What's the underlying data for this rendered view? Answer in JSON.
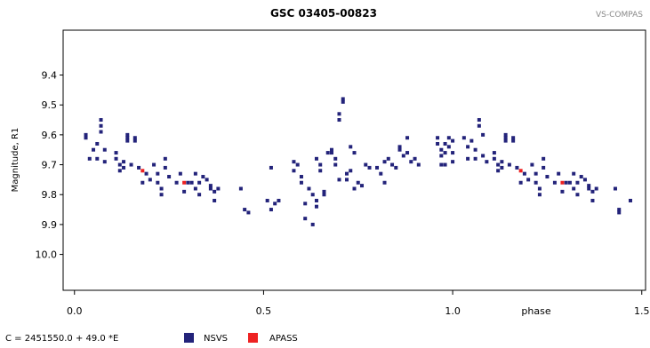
{
  "chart_data": {
    "type": "scatter",
    "title": "GSC 03405-00823",
    "brand": "VS-COMPAS",
    "xlabel": "phase",
    "ylabel": "Magnitude, R1",
    "xlim": [
      -0.03,
      1.51
    ],
    "ylim": [
      9.25,
      10.12
    ],
    "y_inverted": true,
    "x_ticks": [
      {
        "value": 0.0,
        "label": "0.0"
      },
      {
        "value": 0.5,
        "label": "0.5"
      },
      {
        "value": 1.0,
        "label": "1.0"
      },
      {
        "value": 1.5,
        "label": "1.5"
      }
    ],
    "y_ticks": [
      {
        "value": 9.4,
        "label": "9.4"
      },
      {
        "value": 9.5,
        "label": "9.5"
      },
      {
        "value": 9.6,
        "label": "9.6"
      },
      {
        "value": 9.7,
        "label": "9.7"
      },
      {
        "value": 9.8,
        "label": "9.8"
      },
      {
        "value": 9.9,
        "label": "9.9"
      },
      {
        "value": 10.0,
        "label": "10.0"
      }
    ],
    "footer_formula": "C = 2451550.0 + 49.0 *E",
    "series": [
      {
        "name": "NSVS",
        "color": "#23237a",
        "points": [
          [
            0.03,
            9.6
          ],
          [
            0.03,
            9.61
          ],
          [
            0.04,
            9.68
          ],
          [
            0.05,
            9.65
          ],
          [
            0.06,
            9.63
          ],
          [
            0.06,
            9.68
          ],
          [
            0.07,
            9.57
          ],
          [
            0.07,
            9.55
          ],
          [
            0.07,
            9.59
          ],
          [
            0.08,
            9.65
          ],
          [
            0.08,
            9.69
          ],
          [
            0.11,
            9.66
          ],
          [
            0.11,
            9.68
          ],
          [
            0.12,
            9.7
          ],
          [
            0.12,
            9.72
          ],
          [
            0.13,
            9.69
          ],
          [
            0.13,
            9.71
          ],
          [
            0.14,
            9.6
          ],
          [
            0.14,
            9.61
          ],
          [
            0.14,
            9.62
          ],
          [
            0.15,
            9.7
          ],
          [
            0.16,
            9.62
          ],
          [
            0.16,
            9.61
          ],
          [
            0.17,
            9.71
          ],
          [
            0.18,
            9.76
          ],
          [
            0.19,
            9.73
          ],
          [
            0.2,
            9.75
          ],
          [
            0.21,
            9.7
          ],
          [
            0.22,
            9.73
          ],
          [
            0.22,
            9.76
          ],
          [
            0.23,
            9.78
          ],
          [
            0.23,
            9.8
          ],
          [
            0.24,
            9.68
          ],
          [
            0.24,
            9.71
          ],
          [
            0.25,
            9.74
          ],
          [
            0.27,
            9.76
          ],
          [
            0.28,
            9.73
          ],
          [
            0.29,
            9.79
          ],
          [
            0.3,
            9.76
          ],
          [
            0.31,
            9.76
          ],
          [
            0.32,
            9.73
          ],
          [
            0.32,
            9.78
          ],
          [
            0.33,
            9.8
          ],
          [
            0.33,
            9.76
          ],
          [
            0.34,
            9.74
          ],
          [
            0.35,
            9.75
          ],
          [
            0.36,
            9.77
          ],
          [
            0.36,
            9.78
          ],
          [
            0.37,
            9.82
          ],
          [
            0.37,
            9.79
          ],
          [
            0.38,
            9.78
          ],
          [
            0.44,
            9.78
          ],
          [
            0.45,
            9.85
          ],
          [
            0.46,
            9.86
          ],
          [
            0.51,
            9.82
          ],
          [
            0.52,
            9.71
          ],
          [
            0.52,
            9.85
          ],
          [
            0.53,
            9.83
          ],
          [
            0.54,
            9.82
          ],
          [
            0.58,
            9.69
          ],
          [
            0.58,
            9.72
          ],
          [
            0.59,
            9.7
          ],
          [
            0.6,
            9.74
          ],
          [
            0.6,
            9.76
          ],
          [
            0.61,
            9.88
          ],
          [
            0.61,
            9.83
          ],
          [
            0.62,
            9.78
          ],
          [
            0.63,
            9.8
          ],
          [
            0.63,
            9.9
          ],
          [
            0.64,
            9.82
          ],
          [
            0.64,
            9.84
          ],
          [
            0.64,
            9.68
          ],
          [
            0.65,
            9.7
          ],
          [
            0.65,
            9.72
          ],
          [
            0.66,
            9.8
          ],
          [
            0.66,
            9.79
          ],
          [
            0.67,
            9.66
          ],
          [
            0.68,
            9.65
          ],
          [
            0.68,
            9.66
          ],
          [
            0.69,
            9.68
          ],
          [
            0.69,
            9.7
          ],
          [
            0.7,
            9.75
          ],
          [
            0.7,
            9.53
          ],
          [
            0.7,
            9.55
          ],
          [
            0.71,
            9.48
          ],
          [
            0.71,
            9.49
          ],
          [
            0.72,
            9.75
          ],
          [
            0.72,
            9.73
          ],
          [
            0.73,
            9.64
          ],
          [
            0.73,
            9.72
          ],
          [
            0.74,
            9.66
          ],
          [
            0.74,
            9.78
          ],
          [
            0.75,
            9.76
          ],
          [
            0.76,
            9.77
          ],
          [
            0.77,
            9.7
          ],
          [
            0.78,
            9.71
          ],
          [
            0.8,
            9.71
          ],
          [
            0.81,
            9.73
          ],
          [
            0.82,
            9.76
          ],
          [
            0.82,
            9.69
          ],
          [
            0.83,
            9.68
          ],
          [
            0.84,
            9.7
          ],
          [
            0.85,
            9.71
          ],
          [
            0.86,
            9.64
          ],
          [
            0.86,
            9.65
          ],
          [
            0.87,
            9.67
          ],
          [
            0.88,
            9.61
          ],
          [
            0.88,
            9.66
          ],
          [
            0.89,
            9.69
          ],
          [
            0.9,
            9.68
          ],
          [
            0.91,
            9.7
          ],
          [
            0.96,
            9.61
          ],
          [
            0.96,
            9.63
          ],
          [
            0.97,
            9.65
          ],
          [
            0.97,
            9.67
          ],
          [
            0.97,
            9.7
          ],
          [
            0.98,
            9.63
          ],
          [
            0.98,
            9.66
          ],
          [
            0.98,
            9.7
          ],
          [
            0.99,
            9.64
          ],
          [
            0.99,
            9.61
          ],
          [
            1.0,
            9.66
          ],
          [
            1.0,
            9.62
          ],
          [
            1.0,
            9.69
          ],
          [
            1.03,
            9.61
          ],
          [
            1.04,
            9.64
          ],
          [
            1.04,
            9.68
          ],
          [
            1.05,
            9.62
          ],
          [
            1.06,
            9.65
          ],
          [
            1.06,
            9.68
          ],
          [
            1.07,
            9.57
          ],
          [
            1.07,
            9.55
          ],
          [
            1.08,
            9.6
          ],
          [
            1.08,
            9.67
          ],
          [
            1.09,
            9.69
          ],
          [
            1.11,
            9.66
          ],
          [
            1.11,
            9.68
          ],
          [
            1.12,
            9.7
          ],
          [
            1.12,
            9.72
          ],
          [
            1.13,
            9.69
          ],
          [
            1.13,
            9.71
          ],
          [
            1.14,
            9.6
          ],
          [
            1.14,
            9.61
          ],
          [
            1.14,
            9.62
          ],
          [
            1.15,
            9.7
          ],
          [
            1.16,
            9.62
          ],
          [
            1.16,
            9.61
          ],
          [
            1.17,
            9.71
          ],
          [
            1.18,
            9.76
          ],
          [
            1.19,
            9.73
          ],
          [
            1.2,
            9.75
          ],
          [
            1.21,
            9.7
          ],
          [
            1.22,
            9.73
          ],
          [
            1.22,
            9.76
          ],
          [
            1.23,
            9.78
          ],
          [
            1.23,
            9.8
          ],
          [
            1.24,
            9.68
          ],
          [
            1.24,
            9.71
          ],
          [
            1.25,
            9.74
          ],
          [
            1.27,
            9.76
          ],
          [
            1.28,
            9.73
          ],
          [
            1.29,
            9.79
          ],
          [
            1.3,
            9.76
          ],
          [
            1.31,
            9.76
          ],
          [
            1.32,
            9.73
          ],
          [
            1.32,
            9.78
          ],
          [
            1.33,
            9.8
          ],
          [
            1.33,
            9.76
          ],
          [
            1.34,
            9.74
          ],
          [
            1.35,
            9.75
          ],
          [
            1.36,
            9.77
          ],
          [
            1.36,
            9.78
          ],
          [
            1.37,
            9.82
          ],
          [
            1.37,
            9.79
          ],
          [
            1.38,
            9.78
          ],
          [
            1.43,
            9.78
          ],
          [
            1.44,
            9.85
          ],
          [
            1.44,
            9.86
          ],
          [
            1.47,
            9.82
          ]
        ]
      },
      {
        "name": "APASS",
        "color": "#ee2222",
        "points": [
          [
            0.18,
            9.72
          ],
          [
            0.29,
            9.76
          ],
          [
            1.18,
            9.72
          ],
          [
            1.29,
            9.76
          ]
        ]
      }
    ]
  }
}
